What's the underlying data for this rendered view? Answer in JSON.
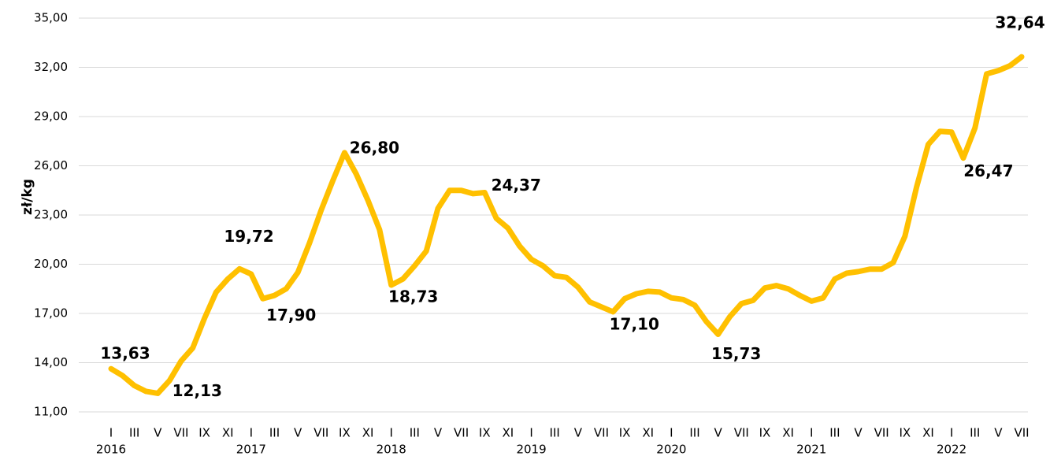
{
  "chart_data": {
    "type": "line",
    "y_label": "zł/kg",
    "categories": [
      "I",
      null,
      "III",
      null,
      "V",
      null,
      "VII",
      null,
      "IX",
      null,
      "XI",
      null,
      "I",
      null,
      "III",
      null,
      "V",
      null,
      "VII",
      null,
      "IX",
      null,
      "XI",
      null,
      "I",
      null,
      "III",
      null,
      "V",
      null,
      "VII",
      null,
      "IX",
      null,
      "XI",
      null,
      "I",
      null,
      "III",
      null,
      "V",
      null,
      "VII",
      null,
      "IX",
      null,
      "XI",
      null,
      "I",
      null,
      "III",
      null,
      "V",
      null,
      "VII",
      null,
      "IX",
      null,
      "XI",
      null,
      "I",
      null,
      "III",
      null,
      "V",
      null,
      "VII",
      null,
      "IX",
      null,
      "XI",
      null,
      "I",
      null,
      "III",
      null,
      "V",
      null,
      "VII"
    ],
    "year_labels": [
      "2016",
      "2017",
      "2018",
      "2019",
      "2020",
      "2021",
      "2022"
    ],
    "series": [
      {
        "name": null,
        "color": "#ffc000",
        "values": [
          13.63,
          13.2,
          12.6,
          12.25,
          12.13,
          12.9,
          14.1,
          14.9,
          16.7,
          18.3,
          19.1,
          19.72,
          19.4,
          17.9,
          18.1,
          18.5,
          19.5,
          21.3,
          23.3,
          25.1,
          26.8,
          25.5,
          23.9,
          22.1,
          18.73,
          19.1,
          19.9,
          20.8,
          23.4,
          24.5,
          24.5,
          24.3,
          24.37,
          22.8,
          22.2,
          21.1,
          20.3,
          19.9,
          19.3,
          19.2,
          18.6,
          17.7,
          17.4,
          17.1,
          17.9,
          18.2,
          18.35,
          18.3,
          17.95,
          17.85,
          17.5,
          16.5,
          15.73,
          16.8,
          17.6,
          17.8,
          18.55,
          18.7,
          18.5,
          18.1,
          17.75,
          17.95,
          19.1,
          19.45,
          19.55,
          19.7,
          19.7,
          20.1,
          21.7,
          24.7,
          27.3,
          28.1,
          28.05,
          26.47,
          28.3,
          31.6,
          31.8,
          32.1,
          32.64
        ],
        "value_labels": [
          "13,63",
          null,
          null,
          null,
          "12,13",
          null,
          null,
          null,
          null,
          null,
          null,
          "19,72",
          null,
          "17,90",
          null,
          null,
          null,
          null,
          null,
          null,
          "26,80",
          null,
          null,
          null,
          "18,73",
          null,
          null,
          null,
          null,
          null,
          null,
          null,
          "24,37",
          null,
          null,
          null,
          null,
          null,
          null,
          null,
          null,
          null,
          null,
          "17,10",
          null,
          null,
          null,
          null,
          null,
          null,
          null,
          null,
          "15,73",
          null,
          null,
          null,
          null,
          null,
          null,
          null,
          null,
          null,
          null,
          null,
          null,
          null,
          null,
          null,
          null,
          null,
          null,
          null,
          null,
          "26,47",
          null,
          null,
          null,
          null,
          "32,64"
        ]
      }
    ],
    "ylim": [
      11,
      35
    ],
    "yticks": [
      {
        "value": 11,
        "label": "11,00"
      },
      {
        "value": 14,
        "label": "14,00"
      },
      {
        "value": 17,
        "label": "17,00"
      },
      {
        "value": 20,
        "label": "20,00"
      },
      {
        "value": 23,
        "label": "23,00"
      },
      {
        "value": 26,
        "label": "26,00"
      },
      {
        "value": 29,
        "label": "29,00"
      },
      {
        "value": 32,
        "label": "32,00"
      },
      {
        "value": 35,
        "label": "35,00"
      }
    ],
    "grid": true
  }
}
